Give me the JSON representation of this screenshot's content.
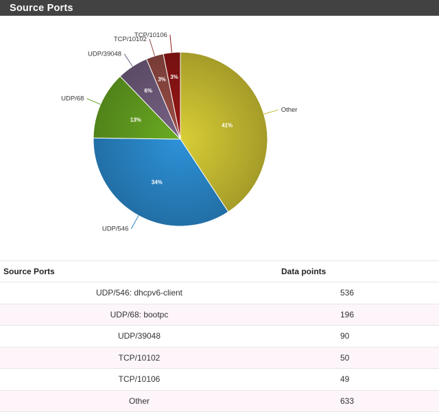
{
  "panel": {
    "title": "Source Ports"
  },
  "chart_data": {
    "type": "pie",
    "slices": [
      {
        "label": "Other",
        "value": 633,
        "percent_label": "41%",
        "color": "#c2b830"
      },
      {
        "label": "UDP/546",
        "value": 536,
        "percent_label": "34%",
        "color": "#2882c2"
      },
      {
        "label": "UDP/68",
        "value": 196,
        "percent_label": "13%",
        "color": "#5f9a1e"
      },
      {
        "label": "UDP/39048",
        "value": 90,
        "percent_label": "6%",
        "color": "#6b5878"
      },
      {
        "label": "TCP/10102",
        "value": 50,
        "percent_label": "3%",
        "color": "#8c4640"
      },
      {
        "label": "TCP/10106",
        "value": 49,
        "percent_label": "3%",
        "color": "#8a1414"
      }
    ]
  },
  "table": {
    "headers": {
      "port": "Source Ports",
      "points": "Data points"
    },
    "rows": [
      {
        "port": "UDP/546: dhcpv6-client",
        "points": "536"
      },
      {
        "port": "UDP/68: bootpc",
        "points": "196"
      },
      {
        "port": "UDP/39048",
        "points": "90"
      },
      {
        "port": "TCP/10102",
        "points": "50"
      },
      {
        "port": "TCP/10106",
        "points": "49"
      },
      {
        "port": "Other",
        "points": "633"
      }
    ]
  }
}
